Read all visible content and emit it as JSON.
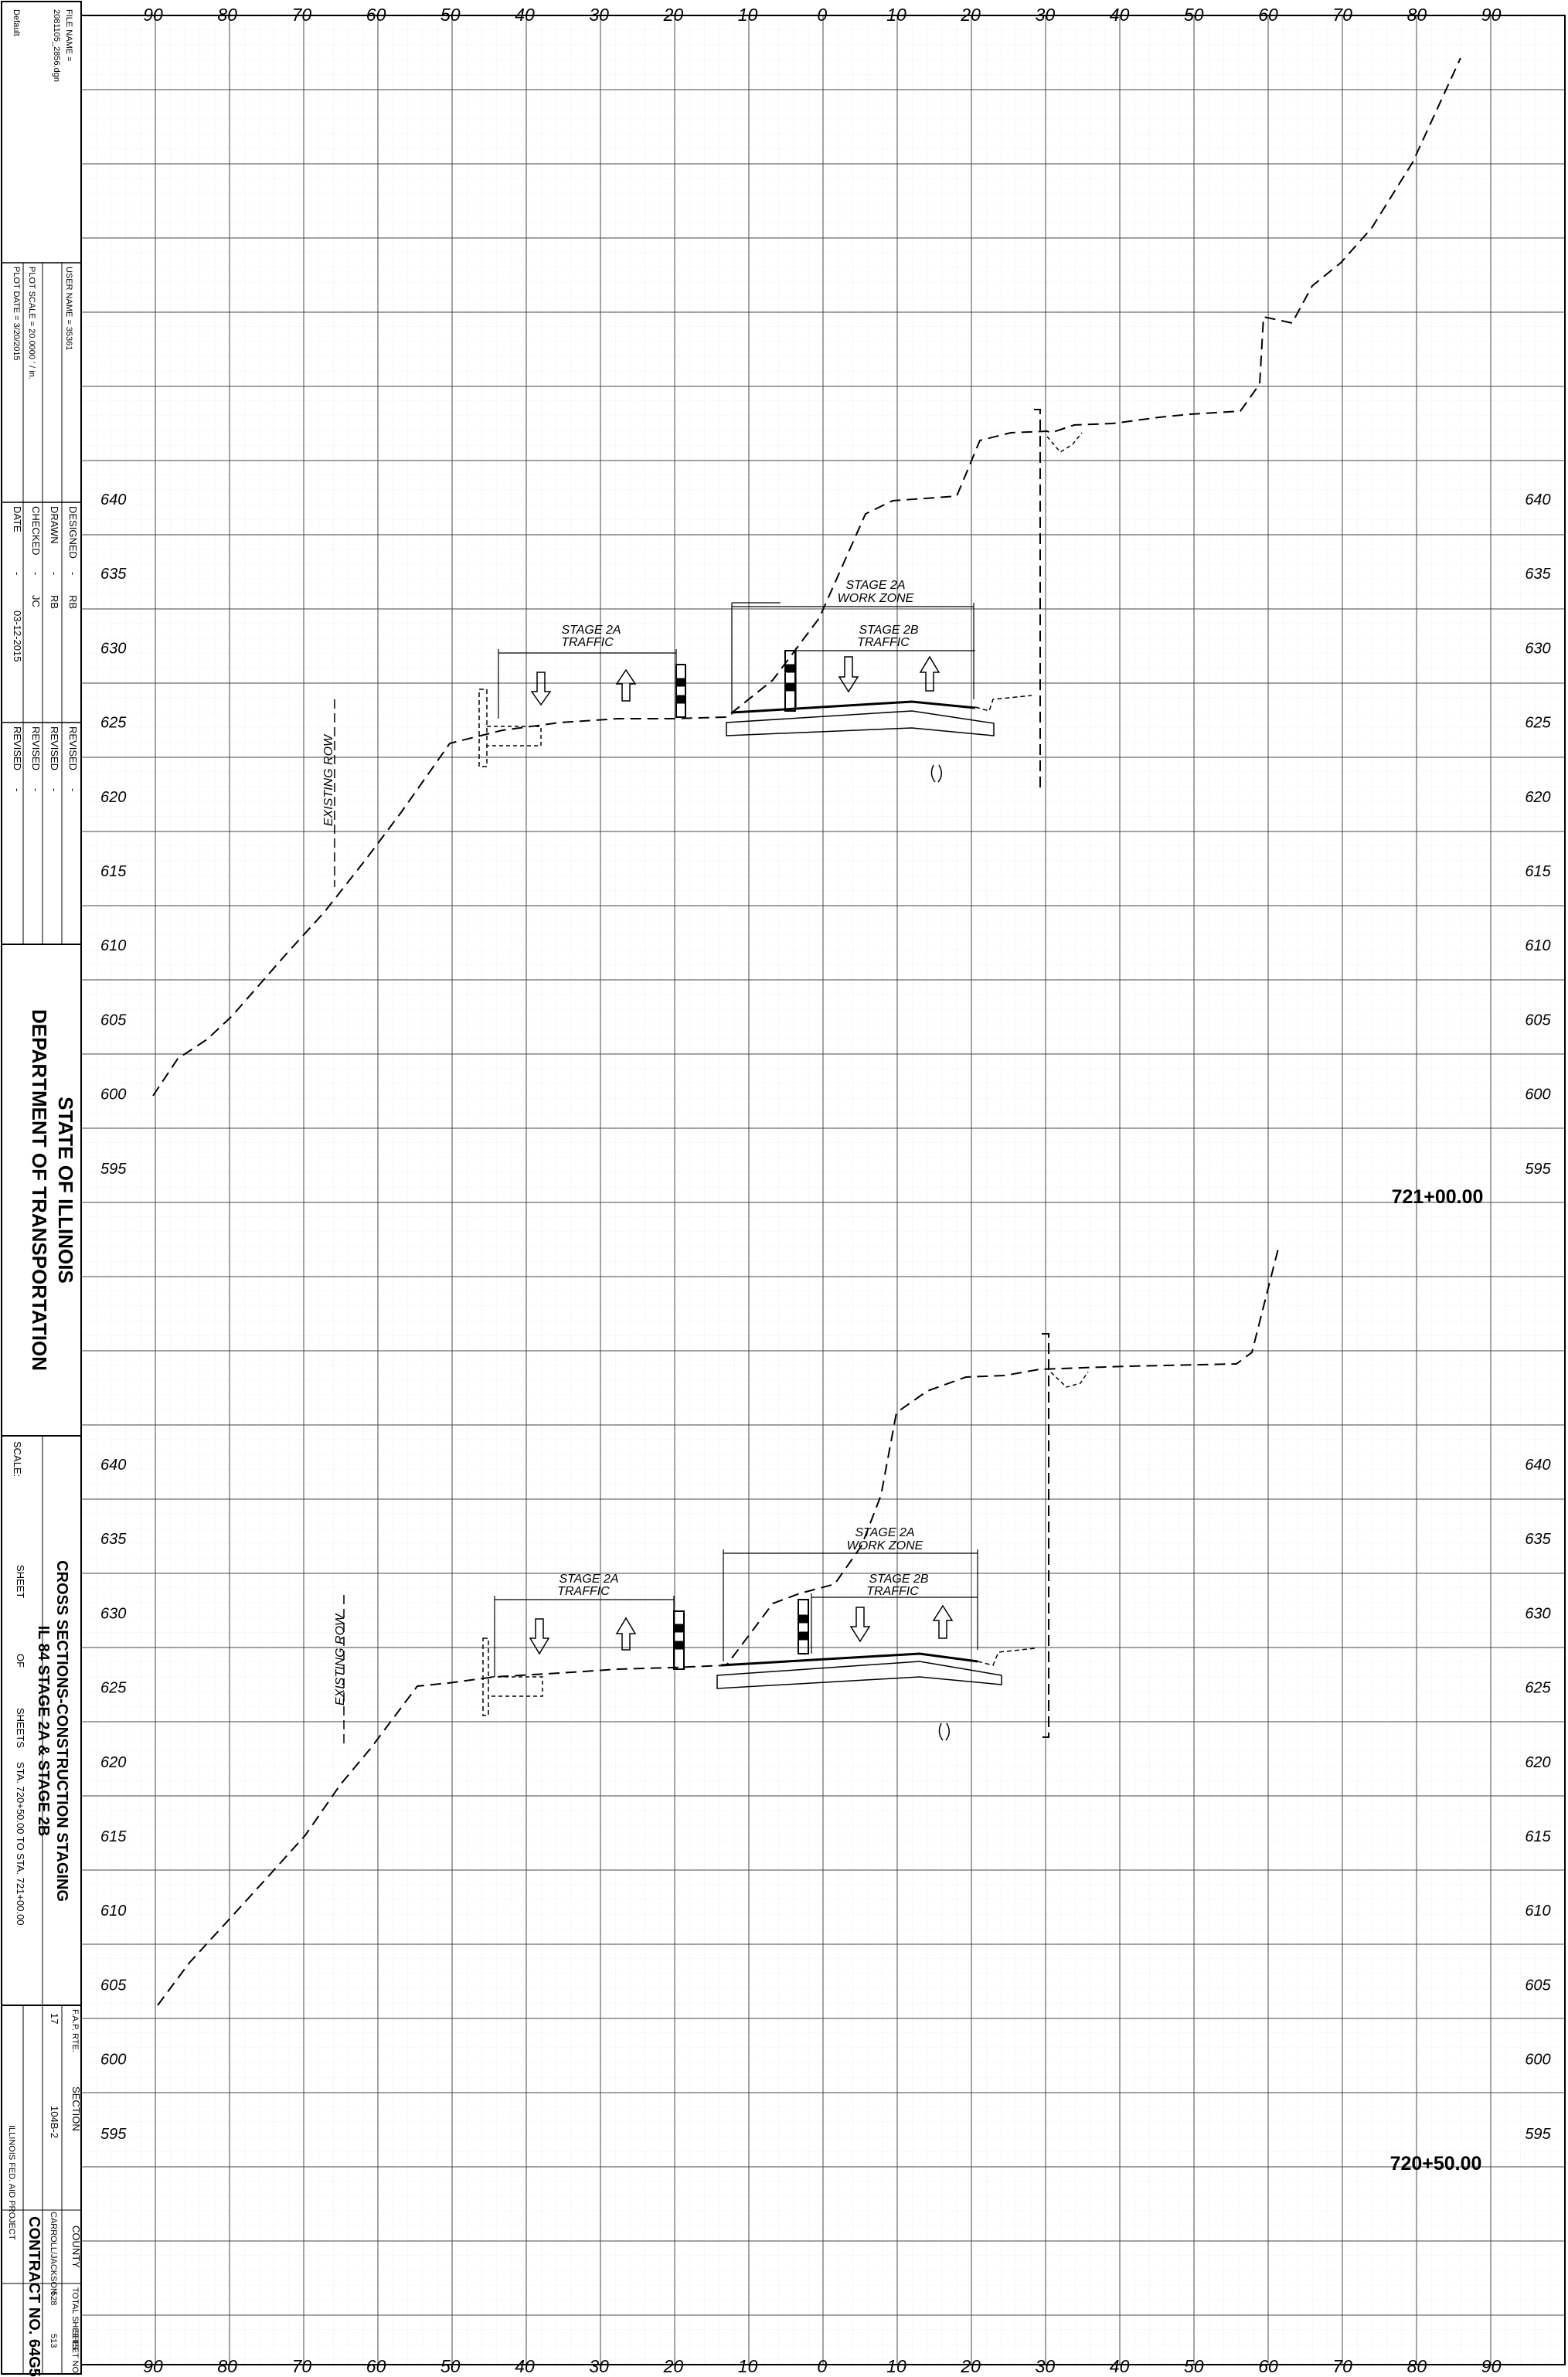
{
  "title_block": {
    "file_name_label": "FILE NAME =",
    "file_name_value": "2081105_2856.dgn",
    "default_label": "Default",
    "user_name_label": "USER NAME = 35361",
    "plot_scale_label": "PLOT SCALE = 20.0000 ' / in.",
    "plot_date_label": "PLOT DATE = 3/20/2015",
    "designed_label": "DESIGNED",
    "designed_value": "RB",
    "drawn_label": "DRAWN",
    "drawn_value": "RB",
    "checked_label": "CHECKED",
    "checked_value": "JC",
    "date_label": "DATE",
    "date_value": "03-12-2015",
    "revised_label": "REVISED",
    "revised_value": "-",
    "dash": "-",
    "agency_line1": "STATE OF ILLINOIS",
    "agency_line2": "DEPARTMENT OF TRANSPORTATION",
    "scale_label": "SCALE:",
    "sheet_title_1": "CROSS SECTIONS-CONSTRUCTION STAGING",
    "sheet_title_2": "IL 84 STAGE 2A & STAGE 2B",
    "sheet_label": "SHEET",
    "of_label": "OF",
    "sheets_label": "SHEETS",
    "station_range": "STA. 720+50.00    TO STA. 721+00.00",
    "fap_label": "F.A.P. RTE.",
    "fap_value": "17",
    "section_label": "SECTION",
    "section_value": "104B-2",
    "county_label": "COUNTY",
    "county_value": "CARROLL/JACKSON",
    "total_sheets_label": "TOTAL SHEETS",
    "total_sheets_value": "528",
    "sheet_no_label": "SHEET NO.",
    "sheet_no_value": "513",
    "contract": "CONTRACT NO. 64G59",
    "federal_aid": "ILLINOIS FED. AID PROJECT"
  },
  "offset_axis_labels": [
    "90",
    "80",
    "70",
    "60",
    "50",
    "40",
    "30",
    "20",
    "10",
    "0",
    "10",
    "20",
    "30",
    "40",
    "50",
    "60",
    "70",
    "80",
    "90"
  ],
  "sections": [
    {
      "station": "721+00.00",
      "elevations": [
        "640",
        "635",
        "630",
        "625",
        "620",
        "615",
        "610",
        "605",
        "600",
        "595"
      ],
      "annotations": {
        "existing_row": "EXISTING ROW",
        "stage_2a_traffic_1": "STAGE 2A",
        "stage_2a_traffic_2": "TRAFFIC",
        "stage_2a_work_1": "STAGE 2A",
        "stage_2a_work_2": "WORK ZONE",
        "stage_2b_traffic_1": "STAGE 2B",
        "stage_2b_traffic_2": "TRAFFIC"
      }
    },
    {
      "station": "720+50.00",
      "elevations": [
        "640",
        "635",
        "630",
        "625",
        "620",
        "615",
        "610",
        "605",
        "600",
        "595"
      ],
      "annotations": {
        "existing_row": "EXISTING ROW",
        "stage_2a_traffic_1": "STAGE 2A",
        "stage_2a_traffic_2": "TRAFFIC",
        "stage_2a_work_1": "STAGE 2A",
        "stage_2a_work_2": "WORK ZONE",
        "stage_2b_traffic_1": "STAGE 2B",
        "stage_2b_traffic_2": "TRAFFIC"
      }
    }
  ],
  "colors": {
    "line": "#000000",
    "major_grid": "#555555",
    "minor_grid": "#c8c8c8",
    "background": "#ffffff"
  }
}
